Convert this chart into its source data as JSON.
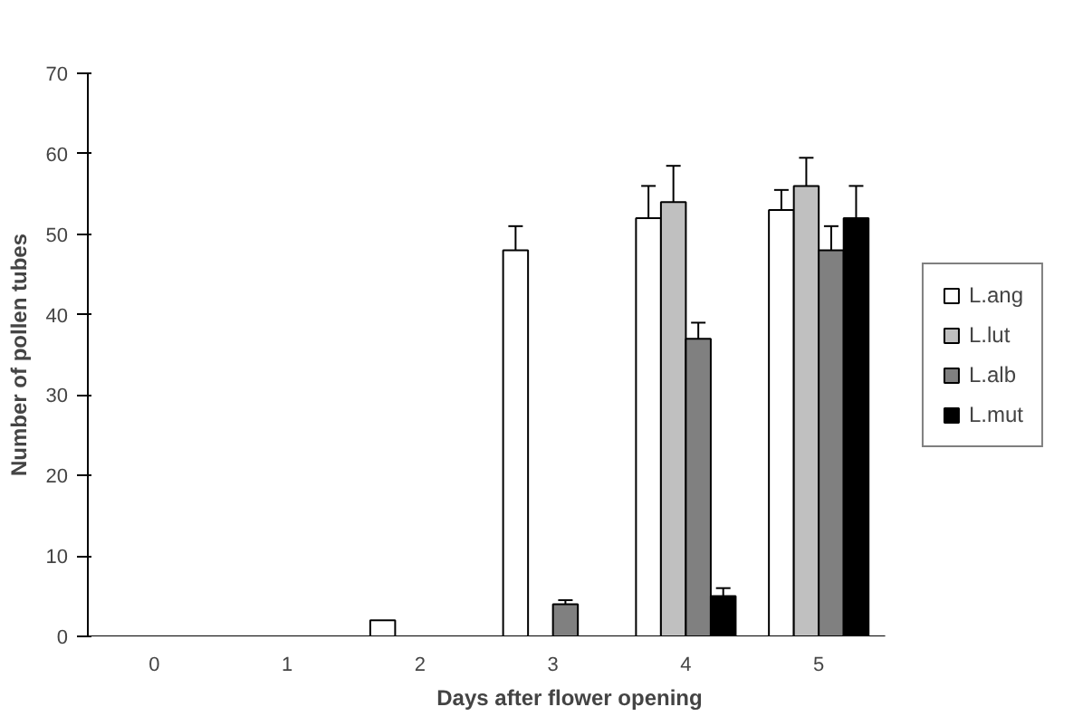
{
  "chart_data": {
    "type": "bar",
    "xlabel": "Days after flower opening",
    "ylabel": "Number of pollen tubes",
    "categories": [
      "0",
      "1",
      "2",
      "3",
      "4",
      "5"
    ],
    "series": [
      {
        "name": "L.ang",
        "color": "#ffffff",
        "values": [
          0,
          0,
          2,
          48,
          52,
          53
        ],
        "errors": [
          null,
          null,
          null,
          3,
          4,
          2.5
        ]
      },
      {
        "name": "L.lut",
        "color": "#c0c0c0",
        "values": [
          0,
          0,
          0,
          0,
          54,
          56
        ],
        "errors": [
          null,
          null,
          null,
          null,
          4.5,
          3.5
        ]
      },
      {
        "name": "L.alb",
        "color": "#808080",
        "values": [
          0,
          0,
          0,
          4,
          37,
          48
        ],
        "errors": [
          null,
          null,
          null,
          0.5,
          2,
          3
        ]
      },
      {
        "name": "L.mut",
        "color": "#000000",
        "values": [
          0,
          0,
          0,
          0,
          5,
          52
        ],
        "errors": [
          null,
          null,
          null,
          null,
          1,
          4
        ]
      }
    ],
    "ylim": [
      0,
      70
    ],
    "yticks": [
      0,
      10,
      20,
      30,
      40,
      50,
      60,
      70
    ],
    "grid": false,
    "legend": "right"
  }
}
